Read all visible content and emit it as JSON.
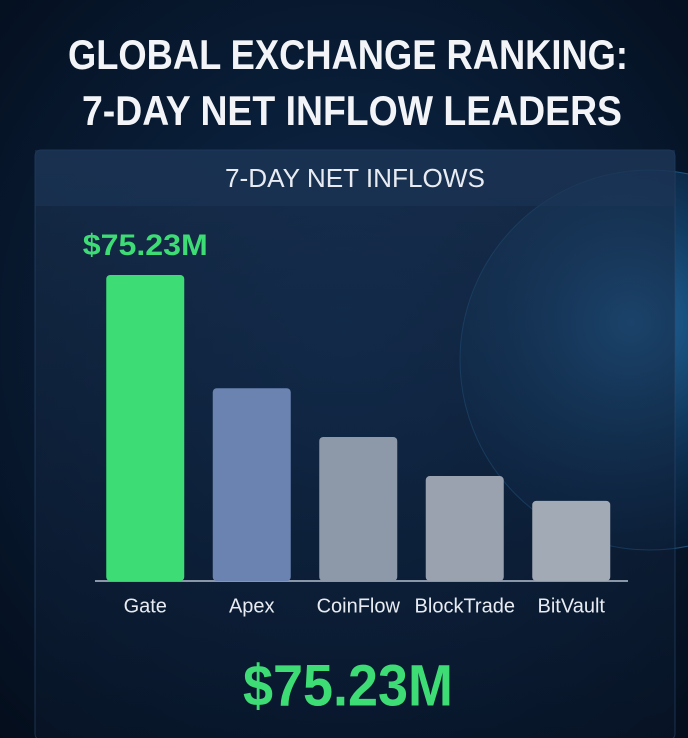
{
  "chart_data": {
    "type": "bar",
    "title": [
      "GLOBAL EXCHANGE RANKING:",
      "7-DAY NET INFLOW LEADERS"
    ],
    "subtitle": "7-DAY NET INFLOWS",
    "categories": [
      "Gate",
      "Apex",
      "CoinFlow",
      "BlockTrade",
      "BitVault"
    ],
    "values": [
      75.23,
      47.4,
      35.4,
      25.8,
      19.7
    ],
    "value_labels": [
      "$75.23M",
      null,
      null,
      null,
      null
    ],
    "colors": [
      "#3ddc74",
      "#6a83b0",
      "#8d98a8",
      "#99a2ae",
      "#a2aab6"
    ],
    "annotation": "$75.23M"
  }
}
